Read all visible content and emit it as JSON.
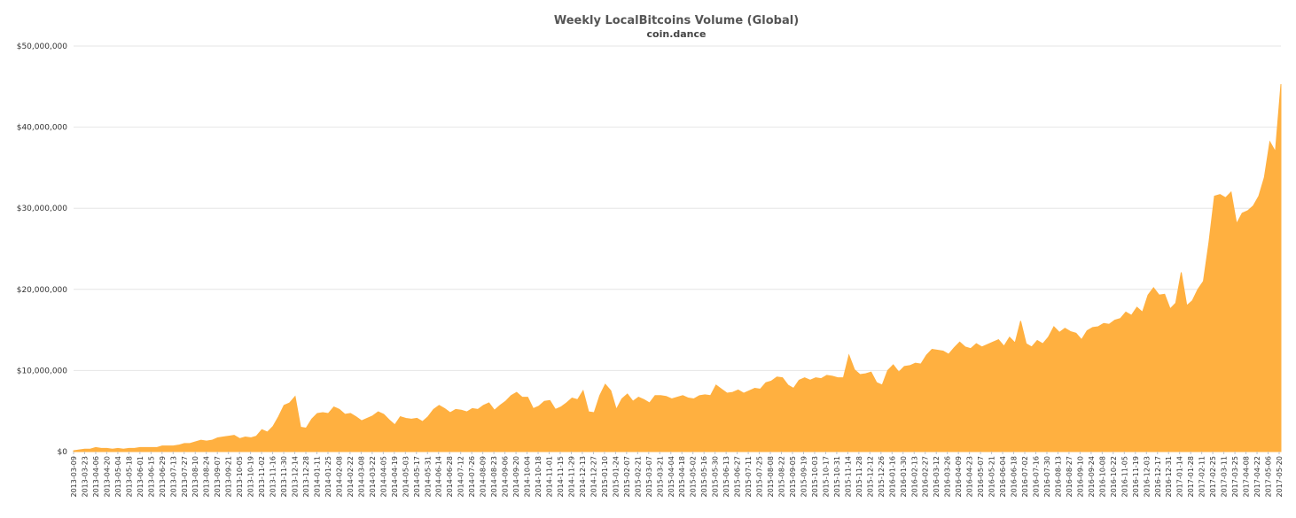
{
  "chart_data": {
    "type": "area",
    "title": "Weekly LocalBitcoins Volume (Global)",
    "subtitle": "coin.dance",
    "xlabel": "",
    "ylabel": "",
    "series_color": "#ffb040",
    "grid": true,
    "legend": "none",
    "ylim": [
      0,
      50000000
    ],
    "y_ticks": [
      0,
      10000000,
      20000000,
      30000000,
      40000000,
      50000000
    ],
    "y_tick_labels": [
      "$0",
      "$10,000,000",
      "$20,000,000",
      "$30,000,000",
      "$40,000,000",
      "$50,000,000"
    ],
    "x_tick_labels": [
      "2013-03-09",
      "2013-03-23",
      "2013-04-06",
      "2013-04-20",
      "2013-05-04",
      "2013-05-18",
      "2013-06-01",
      "2013-06-15",
      "2013-06-29",
      "2013-07-13",
      "2013-07-27",
      "2013-08-10",
      "2013-08-24",
      "2013-09-07",
      "2013-09-21",
      "2013-10-05",
      "2013-10-19",
      "2013-11-02",
      "2013-11-16",
      "2013-11-30",
      "2013-12-14",
      "2013-12-28",
      "2014-01-11",
      "2014-01-25",
      "2014-02-08",
      "2014-02-22",
      "2014-03-08",
      "2014-03-22",
      "2014-04-05",
      "2014-04-19",
      "2014-05-03",
      "2014-05-17",
      "2014-05-31",
      "2014-06-14",
      "2014-06-28",
      "2014-07-12",
      "2014-07-26",
      "2014-08-09",
      "2014-08-23",
      "2014-09-06",
      "2014-09-20",
      "2014-10-04",
      "2014-10-18",
      "2014-11-01",
      "2014-11-15",
      "2014-11-29",
      "2014-12-13",
      "2014-12-27",
      "2015-01-10",
      "2015-01-24",
      "2015-02-07",
      "2015-02-21",
      "2015-03-07",
      "2015-03-21",
      "2015-04-04",
      "2015-04-18",
      "2015-05-02",
      "2015-05-16",
      "2015-05-30",
      "2015-06-13",
      "2015-06-27",
      "2015-07-11",
      "2015-07-25",
      "2015-08-08",
      "2015-08-22",
      "2015-09-05",
      "2015-09-19",
      "2015-10-03",
      "2015-10-17",
      "2015-10-31",
      "2015-11-14",
      "2015-11-28",
      "2015-12-12",
      "2015-12-26",
      "2016-01-16",
      "2016-01-30",
      "2016-02-13",
      "2016-02-27",
      "2016-03-12",
      "2016-03-26",
      "2016-04-09",
      "2016-04-23",
      "2016-05-07",
      "2016-05-21",
      "2016-06-04",
      "2016-06-18",
      "2016-07-02",
      "2016-07-16",
      "2016-07-30",
      "2016-08-13",
      "2016-08-27",
      "2016-09-10",
      "2016-09-24",
      "2016-10-08",
      "2016-10-22",
      "2016-11-05",
      "2016-11-19",
      "2016-12-03",
      "2016-12-17",
      "2016-12-31",
      "2017-01-14",
      "2017-01-28",
      "2017-02-11",
      "2017-02-25",
      "2017-03-11",
      "2017-03-25",
      "2017-04-08",
      "2017-04-22",
      "2017-05-06",
      "2017-05-20"
    ],
    "values": [
      0.1,
      0.2,
      0.3,
      0.3,
      0.5,
      0.4,
      0.4,
      0.3,
      0.4,
      0.3,
      0.4,
      0.4,
      0.5,
      0.5,
      0.5,
      0.5,
      0.7,
      0.7,
      0.7,
      0.8,
      1.0,
      1.0,
      1.2,
      1.4,
      1.3,
      1.4,
      1.7,
      1.8,
      1.9,
      2.0,
      1.6,
      1.8,
      1.7,
      1.9,
      2.7,
      2.4,
      3.1,
      4.3,
      5.7,
      6.0,
      6.8,
      3.0,
      2.9,
      4.0,
      4.7,
      4.8,
      4.7,
      5.5,
      5.2,
      4.6,
      4.7,
      4.3,
      3.8,
      4.1,
      4.4,
      4.9,
      4.6,
      3.9,
      3.3,
      4.3,
      4.1,
      4.0,
      4.1,
      3.7,
      4.3,
      5.2,
      5.7,
      5.3,
      4.8,
      5.2,
      5.1,
      4.9,
      5.3,
      5.2,
      5.7,
      6.0,
      5.1,
      5.7,
      6.2,
      6.9,
      7.3,
      6.7,
      6.7,
      5.3,
      5.6,
      6.2,
      6.3,
      5.2,
      5.5,
      6.0,
      6.6,
      6.4,
      7.5,
      4.9,
      4.8,
      6.9,
      8.3,
      7.5,
      5.2,
      6.5,
      7.1,
      6.2,
      6.7,
      6.4,
      6.0,
      6.9,
      6.9,
      6.8,
      6.5,
      6.7,
      6.9,
      6.6,
      6.5,
      6.9,
      7.0,
      6.9,
      8.2,
      7.7,
      7.2,
      7.3,
      7.6,
      7.2,
      7.5,
      7.8,
      7.7,
      8.5,
      8.7,
      9.2,
      9.1,
      8.2,
      7.8,
      8.8,
      9.1,
      8.8,
      9.1,
      9.0,
      9.4,
      9.3,
      9.1,
      9.1,
      11.9,
      10.1,
      9.5,
      9.6,
      9.8,
      8.5,
      8.2,
      10.0,
      10.7,
      9.8,
      10.5,
      10.6,
      10.9,
      10.8,
      11.9,
      12.6,
      12.5,
      12.4,
      12.0,
      12.8,
      13.5,
      12.9,
      12.7,
      13.3,
      12.9,
      13.2,
      13.5,
      13.8,
      13.0,
      14.1,
      13.4,
      16.1,
      13.3,
      12.9,
      13.7,
      13.3,
      14.1,
      15.4,
      14.7,
      15.2,
      14.8,
      14.6,
      13.8,
      14.9,
      15.3,
      15.4,
      15.8,
      15.7,
      16.2,
      16.4,
      17.2,
      16.8,
      17.8,
      17.2,
      19.3,
      20.2,
      19.3,
      19.4,
      17.6,
      18.3,
      22.1,
      18.0,
      18.6,
      20.0,
      21.0,
      25.8,
      31.5,
      31.7,
      31.3,
      32.0,
      28.1,
      29.4,
      29.7,
      30.3,
      31.5,
      33.8,
      38.2,
      37.0,
      45.3
    ],
    "value_multiplier": 1000000
  }
}
